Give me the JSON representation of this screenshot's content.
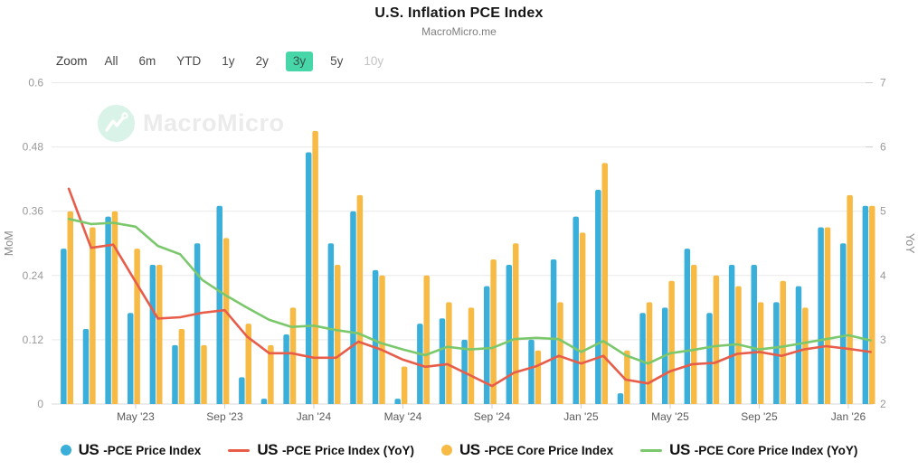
{
  "header": {
    "title": "U.S. Inflation PCE Index",
    "subtitle": "MacroMicro.me"
  },
  "watermark": {
    "text": "MacroMicro"
  },
  "toolbar": {
    "zoom_label": "Zoom",
    "buttons": [
      {
        "label": "All",
        "state": "normal"
      },
      {
        "label": "6m",
        "state": "normal"
      },
      {
        "label": "YTD",
        "state": "normal"
      },
      {
        "label": "1y",
        "state": "normal"
      },
      {
        "label": "2y",
        "state": "normal"
      },
      {
        "label": "3y",
        "state": "active"
      },
      {
        "label": "5y",
        "state": "normal"
      },
      {
        "label": "10y",
        "state": "disabled"
      }
    ]
  },
  "chart_data": {
    "type": "bar",
    "subtype": "dual-axis monthly bars with YoY lines",
    "grid": true,
    "legend_position": "bottom",
    "months": [
      "Feb '23",
      "Mar '23",
      "Apr '23",
      "May '23",
      "Jun '23",
      "Jul '23",
      "Aug '23",
      "Sep '23",
      "Oct '23",
      "Nov '23",
      "Dec '23",
      "Jan '24",
      "Feb '24",
      "Mar '24",
      "Apr '24",
      "May '24",
      "Jun '24",
      "Jul '24",
      "Aug '24",
      "Sep '24",
      "Oct '24",
      "Nov '24",
      "Dec '24",
      "Jan '25",
      "Feb '25",
      "Mar '25",
      "Apr '25",
      "May '25",
      "Jun '25",
      "Jul '25",
      "Aug '25",
      "Sep '25",
      "Oct '25",
      "Nov '25",
      "Dec '25",
      "Jan '26",
      "Feb '26"
    ],
    "x_ticks": [
      {
        "index": 3,
        "label": "May '23"
      },
      {
        "index": 7,
        "label": "Sep '23"
      },
      {
        "index": 11,
        "label": "Jan '24"
      },
      {
        "index": 15,
        "label": "May '24"
      },
      {
        "index": 19,
        "label": "Sep '24"
      },
      {
        "index": 23,
        "label": "Jan '25"
      },
      {
        "index": 27,
        "label": "May '25"
      },
      {
        "index": 31,
        "label": "Sep '25"
      },
      {
        "index": 35,
        "label": "Jan '26"
      }
    ],
    "left_axis": {
      "title": "MoM",
      "range": [
        0,
        0.6
      ],
      "ticks": [
        "0",
        "0.12",
        "0.24",
        "0.36",
        "0.48",
        "0.6"
      ],
      "tick_values": [
        0,
        0.12,
        0.24,
        0.36,
        0.48,
        0.6
      ]
    },
    "right_axis": {
      "title": "YoY",
      "range": [
        2,
        7
      ],
      "ticks": [
        "2",
        "3",
        "4",
        "5",
        "6",
        "7"
      ],
      "tick_values": [
        2,
        3,
        4,
        5,
        6,
        7
      ]
    },
    "series": [
      {
        "name": "US -PCE Price Index",
        "brand": "US",
        "rest": "-PCE Price Index",
        "type": "bar",
        "axis": "left",
        "color": "#3aafd9",
        "marker": "dot",
        "values": [
          0.29,
          0.14,
          0.35,
          0.17,
          0.26,
          0.11,
          0.3,
          0.37,
          0.05,
          0.01,
          0.13,
          0.47,
          0.3,
          0.36,
          0.25,
          0.01,
          0.15,
          0.16,
          0.12,
          0.22,
          0.26,
          0.12,
          0.27,
          0.35,
          0.4,
          0.02,
          0.17,
          0.18,
          0.29,
          0.17,
          0.26,
          0.26,
          0.19,
          0.22,
          0.33,
          0.3,
          0.37
        ]
      },
      {
        "name": "US -PCE Price Index (YoY)",
        "brand": "US",
        "rest": "-PCE Price Index (YoY)",
        "type": "line",
        "axis": "right",
        "color": "#e85c4a",
        "marker": "dash",
        "values": [
          5.35,
          4.43,
          4.48,
          3.9,
          3.33,
          3.35,
          3.42,
          3.46,
          3.05,
          2.79,
          2.79,
          2.72,
          2.72,
          2.97,
          2.85,
          2.69,
          2.58,
          2.62,
          2.45,
          2.28,
          2.49,
          2.59,
          2.75,
          2.63,
          2.75,
          2.38,
          2.32,
          2.51,
          2.62,
          2.64,
          2.78,
          2.81,
          2.75,
          2.85,
          2.9,
          2.86,
          2.81
        ]
      },
      {
        "name": "US -PCE Core Price Index",
        "brand": "US",
        "rest": "-PCE Core Price Index",
        "type": "bar",
        "axis": "left",
        "color": "#f7ba45",
        "marker": "dot",
        "values": [
          0.36,
          0.33,
          0.36,
          0.29,
          0.26,
          0.14,
          0.11,
          0.31,
          0.15,
          0.11,
          0.18,
          0.51,
          0.26,
          0.39,
          0.24,
          0.07,
          0.24,
          0.19,
          0.18,
          0.27,
          0.3,
          0.1,
          0.19,
          0.32,
          0.45,
          0.1,
          0.19,
          0.23,
          0.26,
          0.24,
          0.22,
          0.19,
          0.23,
          0.18,
          0.33,
          0.39,
          0.37
        ]
      },
      {
        "name": "US -PCE Core Price Index (YoY)",
        "brand": "US",
        "rest": "-PCE Core Price Index (YoY)",
        "type": "line",
        "axis": "right",
        "color": "#7bc86c",
        "marker": "dash",
        "values": [
          4.88,
          4.8,
          4.82,
          4.76,
          4.46,
          4.33,
          3.93,
          3.7,
          3.5,
          3.31,
          3.2,
          3.22,
          3.15,
          3.1,
          2.95,
          2.85,
          2.76,
          2.89,
          2.85,
          2.87,
          3.01,
          3.03,
          3.01,
          2.81,
          2.98,
          2.76,
          2.63,
          2.79,
          2.84,
          2.9,
          2.93,
          2.85,
          2.89,
          2.95,
          3.01,
          3.07,
          2.99
        ]
      }
    ],
    "colors": {
      "grid": "#e9e9e9",
      "axis_line": "#d8d8d8",
      "tick_mark": "#cfcfcf",
      "axis_text": "#999999",
      "x_text": "#5a5a5a",
      "axis_title": "#8a8a8a",
      "active_button_bg": "#47d6a7"
    }
  }
}
